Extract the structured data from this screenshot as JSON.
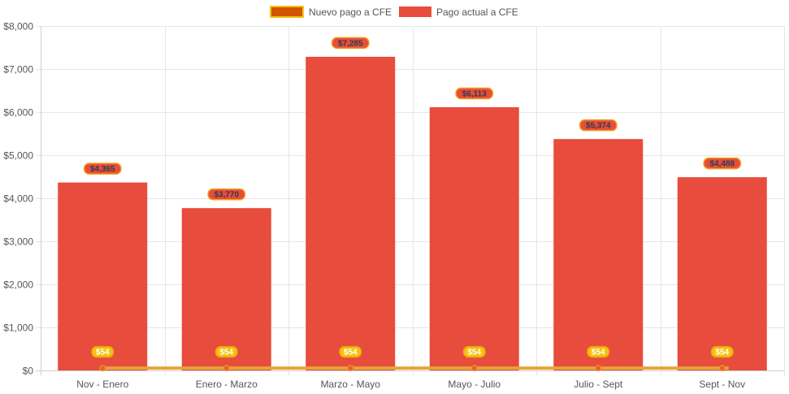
{
  "chart_data": {
    "type": "bar",
    "categories": [
      "Nov - Enero",
      "Enero - Marzo",
      "Marzo - Mayo",
      "Mayo - Julio",
      "Julio - Sept",
      "Sept - Nov"
    ],
    "series": [
      {
        "name": "Nuevo pago a CFE",
        "kind": "line",
        "values": [
          54,
          54,
          54,
          54,
          54,
          54
        ],
        "labels": [
          "$54",
          "$54",
          "$54",
          "$54",
          "$54",
          "$54"
        ],
        "color": "#e8a33b",
        "fill": "#d35400"
      },
      {
        "name": "Pago actual a CFE",
        "kind": "bar",
        "values": [
          4365,
          3770,
          7285,
          6113,
          5374,
          4488
        ],
        "labels": [
          "$4,365",
          "$3,770",
          "$7,285",
          "$6,113",
          "$5,374",
          "$4,488"
        ],
        "color": "#e74c3c"
      }
    ],
    "yticks": [
      "$0",
      "$1,000",
      "$2,000",
      "$3,000",
      "$4,000",
      "$5,000",
      "$6,000",
      "$7,000",
      "$8,000"
    ],
    "ylim": [
      0,
      8000
    ],
    "ystep": 1000,
    "legend_position": "top-center",
    "grid": true
  }
}
